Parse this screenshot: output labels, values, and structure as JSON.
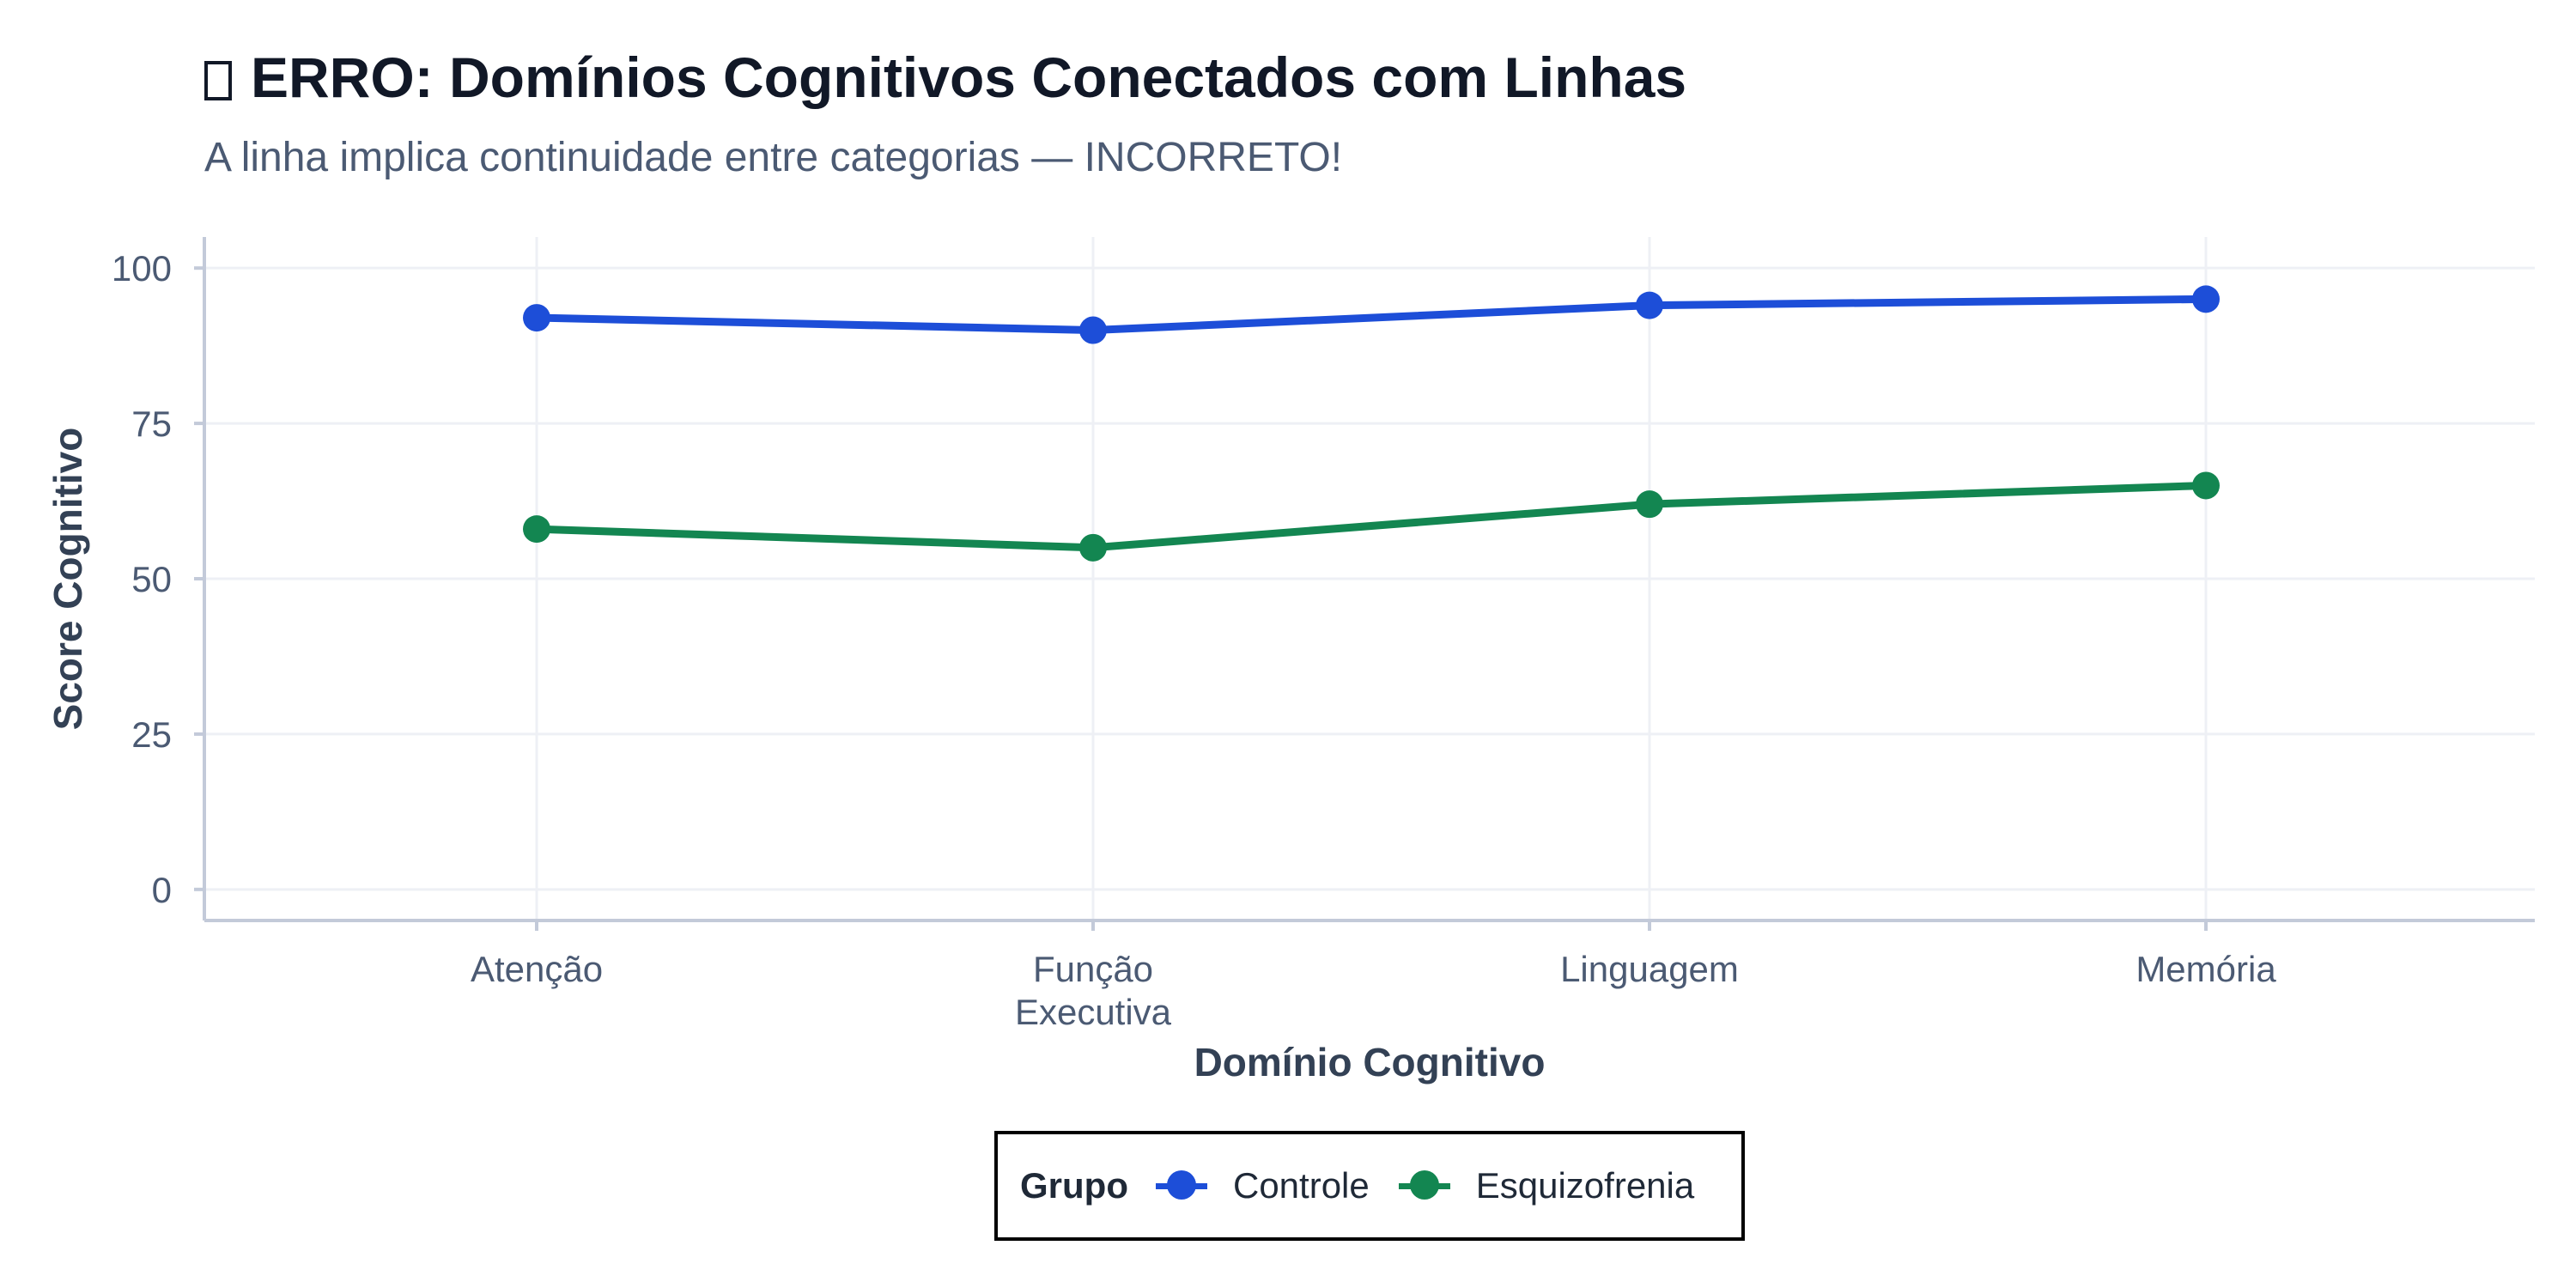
{
  "chart_data": {
    "type": "line",
    "title": "ERRO: Domínios Cognitivos Conectados com Linhas",
    "subtitle": "A linha implica continuidade entre categorias — INCORRETO!",
    "xlabel": "Domínio Cognitivo",
    "ylabel": "Score Cognitivo",
    "categories": [
      "Atenção",
      "Função\nExecutiva",
      "Linguagem",
      "Memória"
    ],
    "ylim": [
      -5,
      105
    ],
    "yticks": [
      0,
      25,
      50,
      75,
      100
    ],
    "grid": true,
    "legend_position": "bottom",
    "legend_title": "Grupo",
    "series": [
      {
        "name": "Controle",
        "values": [
          92,
          90,
          94,
          95
        ],
        "color": "#1d4ed8"
      },
      {
        "name": "Esquizofrenia",
        "values": [
          58,
          55,
          62,
          65
        ],
        "color": "#138651"
      }
    ]
  },
  "colors": {
    "grid": "#eef0f5",
    "axis": "#c3cad9",
    "tick_text": "#4b5a73",
    "axis_title": "#334155"
  }
}
